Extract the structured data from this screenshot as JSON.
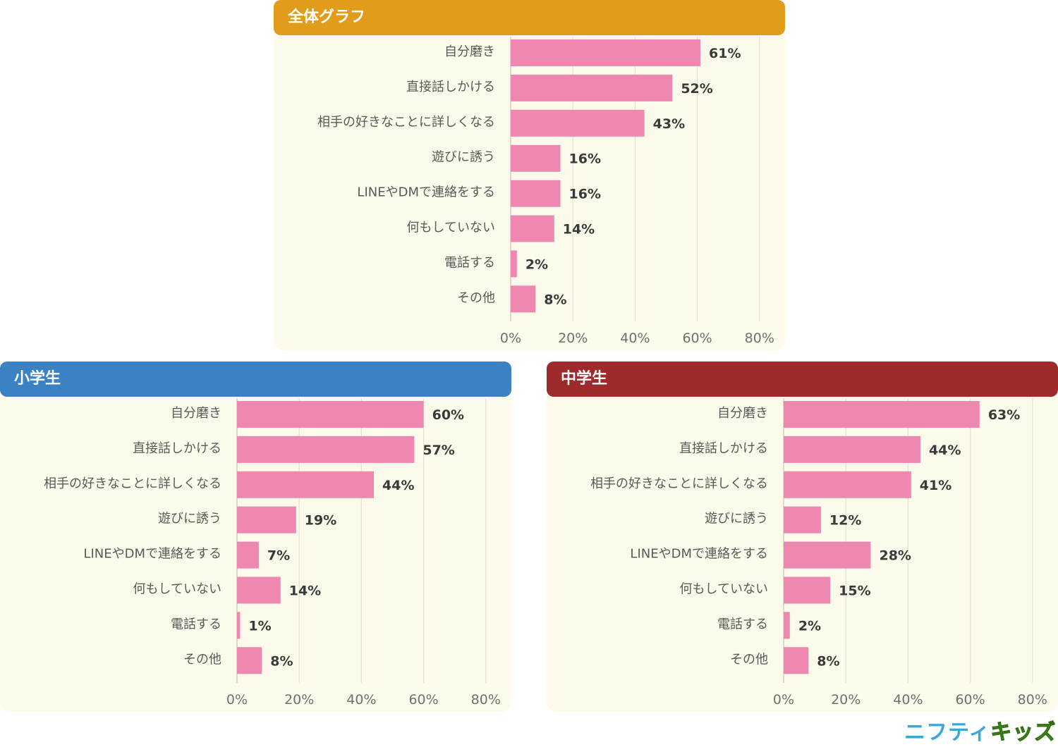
{
  "colors": {
    "bar": "#ee88b0",
    "panel_body": "#fcfaea"
  },
  "logo": {
    "part_a": "ニフティ",
    "part_b": "キッズ"
  },
  "chart_data": [
    {
      "type": "bar",
      "orientation": "horizontal",
      "title": "全体グラフ",
      "header_color": "#e09c1a",
      "categories": [
        "自分磨き",
        "直接話しかける",
        "相手の好きなことに詳しくなる",
        "遊びに誘う",
        "LINEやDMで連絡をする",
        "何もしていない",
        "電話する",
        "その他"
      ],
      "values": [
        61,
        52,
        43,
        16,
        16,
        14,
        2,
        8
      ],
      "value_labels": [
        "61%",
        "52%",
        "43%",
        "16%",
        "16%",
        "14%",
        "2%",
        "8%"
      ],
      "xlim": [
        0,
        80
      ],
      "xticks": [
        0,
        20,
        40,
        60,
        80
      ],
      "xtick_labels": [
        "0%",
        "20%",
        "40%",
        "60%",
        "80%"
      ],
      "grid": true
    },
    {
      "type": "bar",
      "orientation": "horizontal",
      "title": "小学生",
      "header_color": "#3a82c4",
      "categories": [
        "自分磨き",
        "直接話しかける",
        "相手の好きなことに詳しくなる",
        "遊びに誘う",
        "LINEやDMで連絡をする",
        "何もしていない",
        "電話する",
        "その他"
      ],
      "values": [
        60,
        57,
        44,
        19,
        7,
        14,
        1,
        8
      ],
      "value_labels": [
        "60%",
        "57%",
        "44%",
        "19%",
        "7%",
        "14%",
        "1%",
        "8%"
      ],
      "xlim": [
        0,
        80
      ],
      "xticks": [
        0,
        20,
        40,
        60,
        80
      ],
      "xtick_labels": [
        "0%",
        "20%",
        "40%",
        "60%",
        "80%"
      ],
      "grid": true
    },
    {
      "type": "bar",
      "orientation": "horizontal",
      "title": "中学生",
      "header_color": "#9e2a2b",
      "categories": [
        "自分磨き",
        "直接話しかける",
        "相手の好きなことに詳しくなる",
        "遊びに誘う",
        "LINEやDMで連絡をする",
        "何もしていない",
        "電話する",
        "その他"
      ],
      "values": [
        63,
        44,
        41,
        12,
        28,
        15,
        2,
        8
      ],
      "value_labels": [
        "63%",
        "44%",
        "41%",
        "12%",
        "28%",
        "15%",
        "2%",
        "8%"
      ],
      "xlim": [
        0,
        80
      ],
      "xticks": [
        0,
        20,
        40,
        60,
        80
      ],
      "xtick_labels": [
        "0%",
        "20%",
        "40%",
        "60%",
        "80%"
      ],
      "grid": true
    }
  ]
}
